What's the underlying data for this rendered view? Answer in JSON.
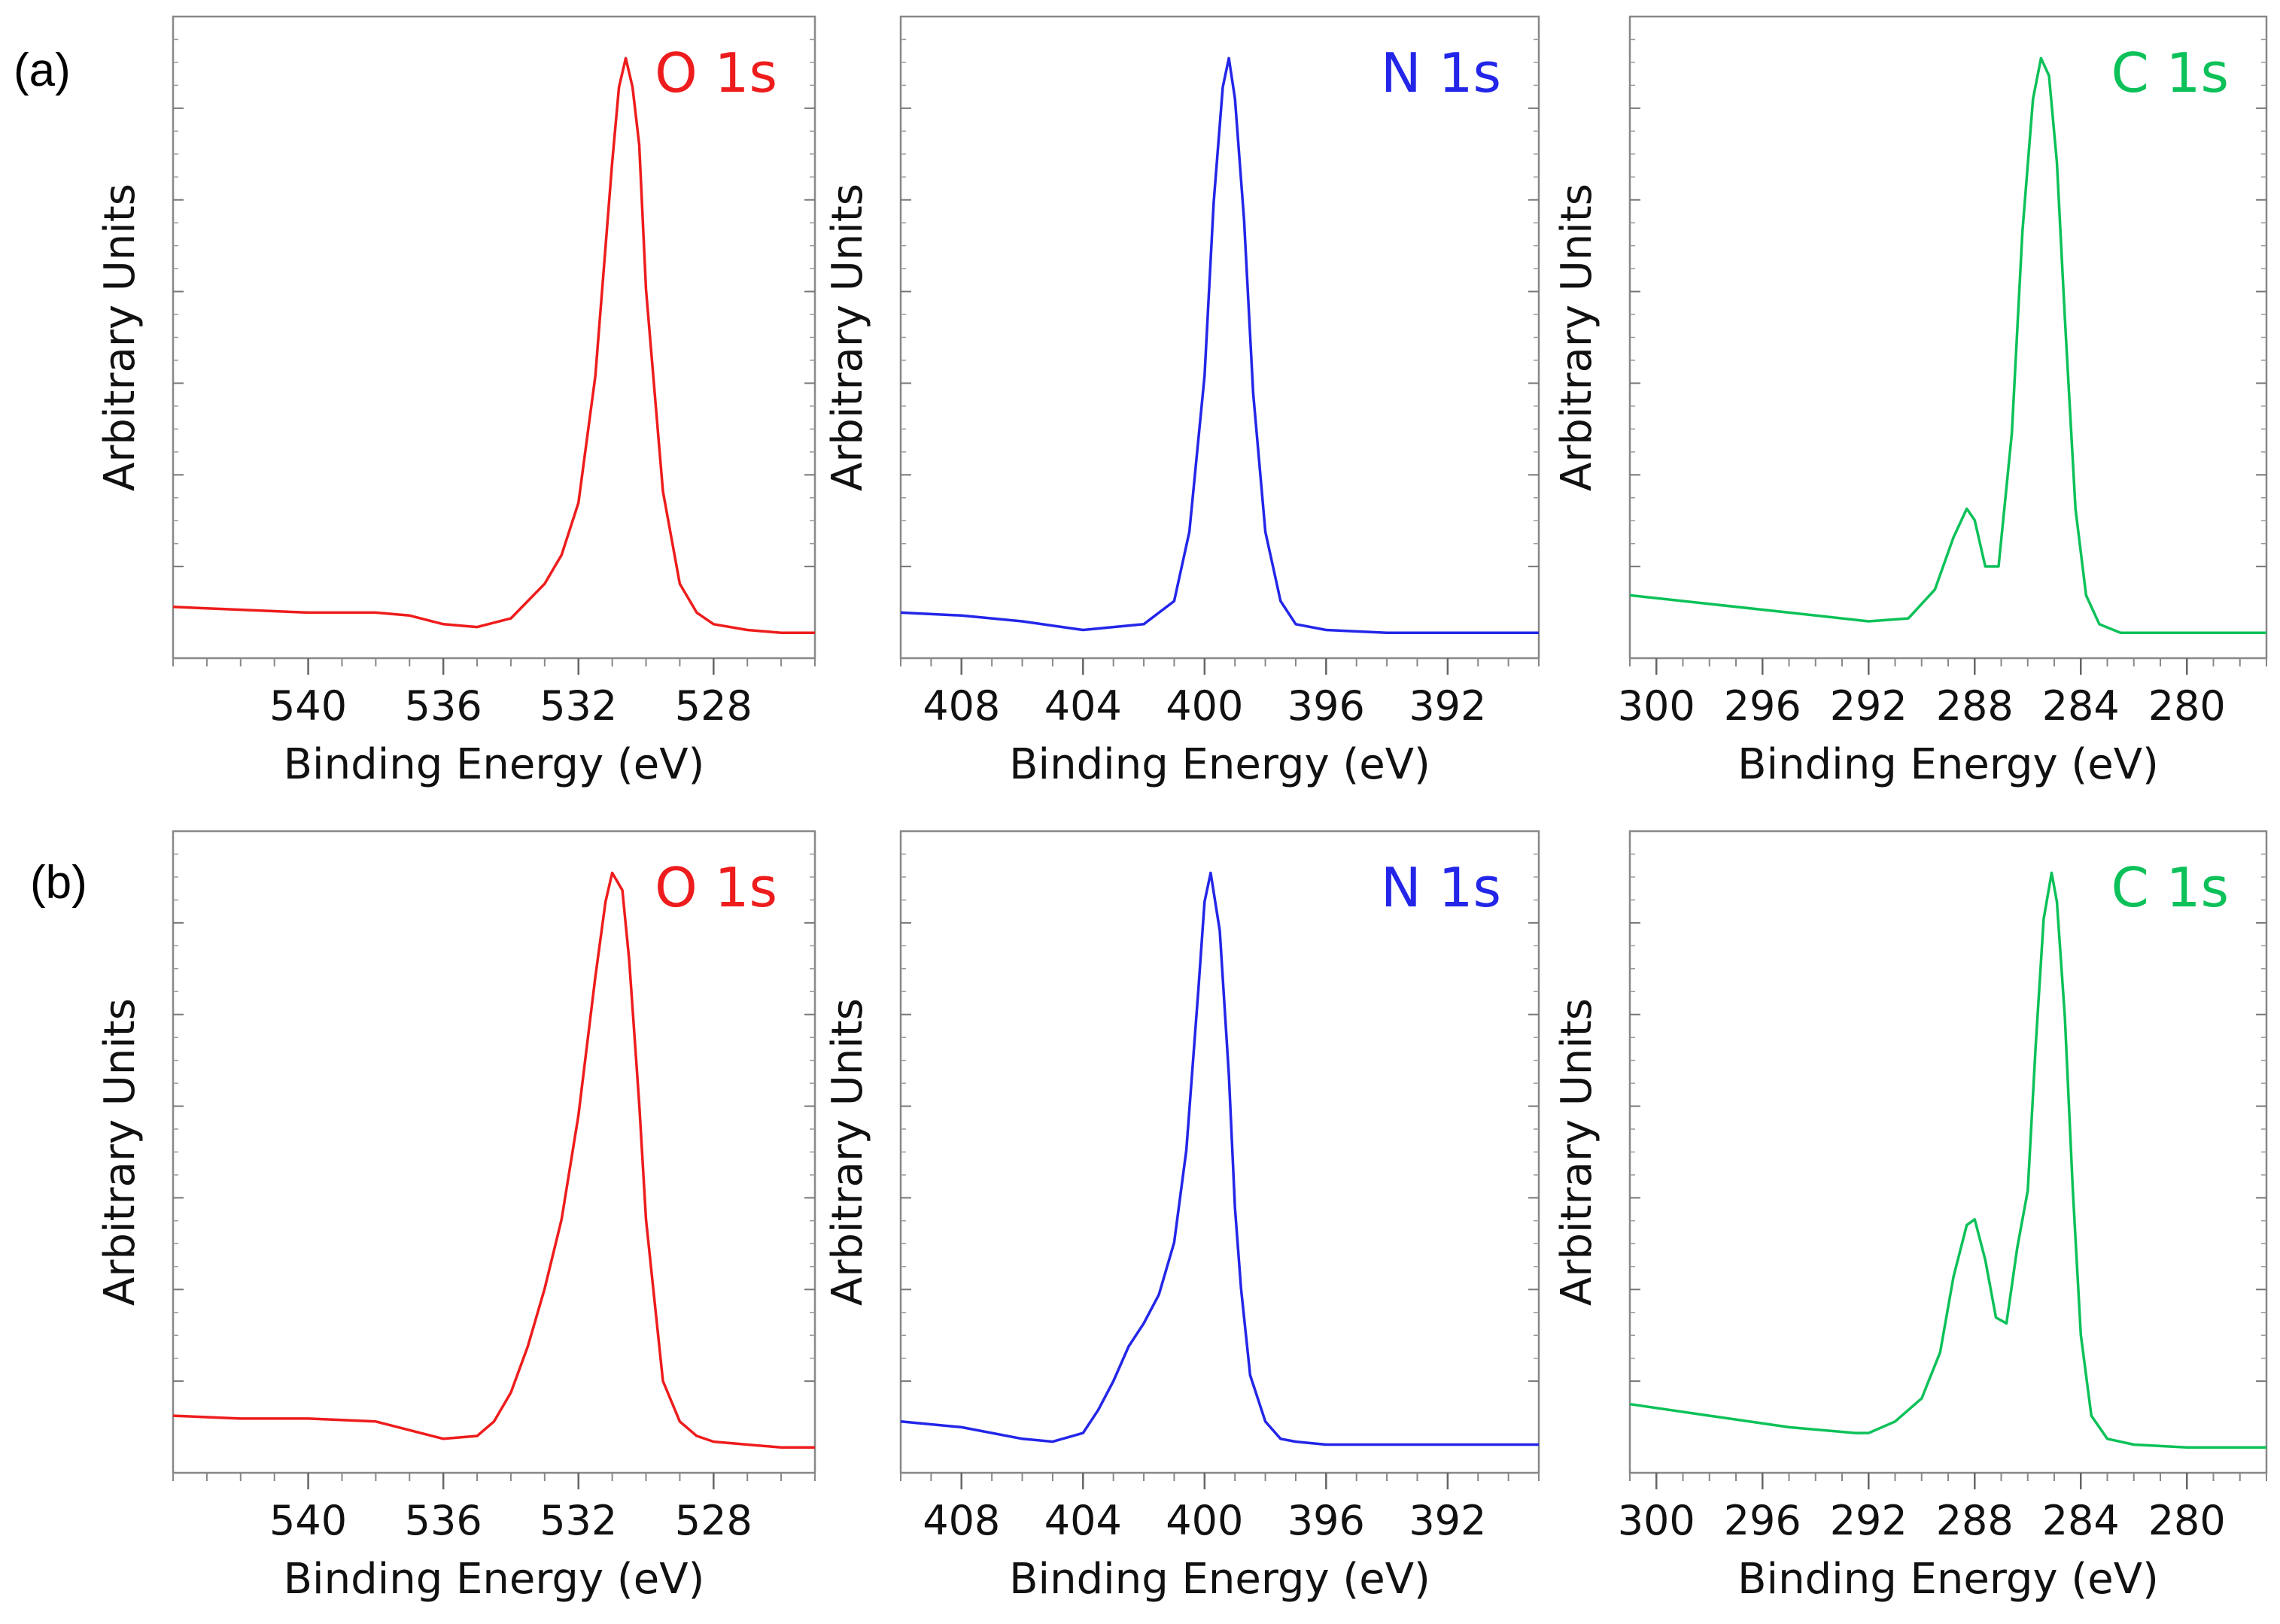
{
  "figure": {
    "panel_labels": [
      "(a)",
      "(b)"
    ],
    "ylabel": "Arbitrary Units",
    "xlabel": "Binding Energy (eV)"
  },
  "chart_data": [
    {
      "type": "line",
      "row": "a",
      "title": "O 1s",
      "color": "#ee1c1c",
      "xlabel": "Binding Energy (eV)",
      "ylabel": "Arbitrary Units",
      "xlim": [
        544,
        525
      ],
      "ylim": [
        0,
        1.05
      ],
      "xticks": [
        540,
        536,
        532,
        528
      ],
      "xtick_labels": [
        "540",
        "536",
        "532",
        "528"
      ],
      "series": [
        {
          "name": "O 1s",
          "x": [
            544,
            542,
            540,
            538,
            537,
            536,
            535,
            534,
            533,
            532.5,
            532,
            531.5,
            531,
            530.8,
            530.6,
            530.4,
            530.2,
            530,
            529.5,
            529,
            528.5,
            528,
            527,
            526,
            525
          ],
          "y": [
            0.05,
            0.045,
            0.04,
            0.04,
            0.035,
            0.02,
            0.015,
            0.03,
            0.09,
            0.14,
            0.23,
            0.45,
            0.82,
            0.95,
            1.0,
            0.95,
            0.85,
            0.6,
            0.25,
            0.09,
            0.04,
            0.02,
            0.01,
            0.005,
            0.005
          ]
        }
      ]
    },
    {
      "type": "line",
      "row": "a",
      "title": "N 1s",
      "color": "#2326e8",
      "xlabel": "Binding Energy (eV)",
      "ylabel": "Arbitrary Units",
      "xlim": [
        410,
        389
      ],
      "ylim": [
        0,
        1.05
      ],
      "xticks": [
        408,
        404,
        400,
        396,
        392
      ],
      "xtick_labels": [
        "408",
        "404",
        "400",
        "396",
        "392"
      ],
      "series": [
        {
          "name": "N 1s",
          "x": [
            410,
            408,
            406,
            404,
            402,
            401,
            400.5,
            400,
            399.7,
            399.4,
            399.2,
            399,
            398.7,
            398.4,
            398,
            397.5,
            397,
            396,
            394,
            392,
            390,
            389
          ],
          "y": [
            0.04,
            0.035,
            0.025,
            0.01,
            0.02,
            0.06,
            0.18,
            0.45,
            0.75,
            0.95,
            1.0,
            0.93,
            0.72,
            0.42,
            0.18,
            0.06,
            0.02,
            0.01,
            0.005,
            0.005,
            0.005,
            0.005
          ]
        }
      ]
    },
    {
      "type": "line",
      "row": "a",
      "title": "C 1s",
      "color": "#0cc159",
      "xlabel": "Binding Energy (eV)",
      "ylabel": "Arbitrary Units",
      "xlim": [
        301,
        277
      ],
      "ylim": [
        0,
        1.05
      ],
      "xticks": [
        300,
        296,
        292,
        288,
        284,
        280
      ],
      "xtick_labels": [
        "300",
        "296",
        "292",
        "288",
        "284",
        "280"
      ],
      "series": [
        {
          "name": "C 1s",
          "x": [
            301,
            298,
            295,
            292,
            290.5,
            289.5,
            288.8,
            288.3,
            288,
            287.6,
            287.1,
            286.6,
            286.2,
            285.8,
            285.5,
            285.2,
            284.9,
            284.6,
            284.2,
            283.8,
            283.3,
            282.5,
            281,
            279,
            277
          ],
          "y": [
            0.07,
            0.055,
            0.04,
            0.025,
            0.03,
            0.08,
            0.17,
            0.22,
            0.2,
            0.12,
            0.12,
            0.35,
            0.7,
            0.93,
            1.0,
            0.97,
            0.82,
            0.55,
            0.22,
            0.07,
            0.02,
            0.005,
            0.005,
            0.005,
            0.005
          ]
        }
      ]
    },
    {
      "type": "line",
      "row": "b",
      "title": "O 1s",
      "color": "#ee1c1c",
      "xlabel": "Binding Energy (eV)",
      "ylabel": "Arbitrary Units",
      "xlim": [
        544,
        525
      ],
      "ylim": [
        0,
        1.05
      ],
      "xticks": [
        540,
        536,
        532,
        528
      ],
      "xtick_labels": [
        "540",
        "536",
        "532",
        "528"
      ],
      "series": [
        {
          "name": "O 1s",
          "x": [
            544,
            542,
            540,
            538,
            537,
            536,
            535,
            534.5,
            534,
            533.5,
            533,
            532.5,
            532,
            531.5,
            531.2,
            531,
            530.7,
            530.5,
            530.2,
            530,
            529.5,
            529,
            528.5,
            528,
            527,
            526,
            525
          ],
          "y": [
            0.06,
            0.055,
            0.055,
            0.05,
            0.035,
            0.02,
            0.025,
            0.05,
            0.1,
            0.18,
            0.28,
            0.4,
            0.58,
            0.82,
            0.95,
            1.0,
            0.97,
            0.85,
            0.6,
            0.4,
            0.12,
            0.05,
            0.025,
            0.015,
            0.01,
            0.005,
            0.005
          ]
        }
      ]
    },
    {
      "type": "line",
      "row": "b",
      "title": "N 1s",
      "color": "#2326e8",
      "xlabel": "Binding Energy (eV)",
      "ylabel": "Arbitrary Units",
      "xlim": [
        410,
        389
      ],
      "ylim": [
        0,
        1.05
      ],
      "xticks": [
        408,
        404,
        400,
        396,
        392
      ],
      "xtick_labels": [
        "408",
        "404",
        "400",
        "396",
        "392"
      ],
      "series": [
        {
          "name": "N 1s",
          "x": [
            410,
            408,
            406,
            405,
            404,
            403.5,
            403,
            402.5,
            402,
            401.5,
            401,
            400.6,
            400.2,
            400,
            399.8,
            399.5,
            399.2,
            399,
            398.8,
            398.5,
            398,
            397.5,
            397,
            396,
            394,
            392,
            390,
            389
          ],
          "y": [
            0.05,
            0.04,
            0.02,
            0.015,
            0.03,
            0.07,
            0.12,
            0.18,
            0.22,
            0.27,
            0.36,
            0.52,
            0.8,
            0.95,
            1.0,
            0.9,
            0.65,
            0.42,
            0.28,
            0.13,
            0.05,
            0.02,
            0.015,
            0.01,
            0.01,
            0.01,
            0.01,
            0.01
          ]
        }
      ]
    },
    {
      "type": "line",
      "row": "b",
      "title": "C 1s",
      "color": "#0cc159",
      "xlabel": "Binding Energy (eV)",
      "ylabel": "Arbitrary Units",
      "xlim": [
        301,
        277
      ],
      "ylim": [
        0,
        1.05
      ],
      "xticks": [
        300,
        296,
        292,
        288,
        284,
        280
      ],
      "xtick_labels": [
        "300",
        "296",
        "292",
        "288",
        "284",
        "280"
      ],
      "series": [
        {
          "name": "C 1s",
          "x": [
            301,
            298,
            295,
            292.5,
            292,
            291,
            290,
            289.3,
            288.8,
            288.3,
            288,
            287.6,
            287.2,
            286.8,
            286.4,
            286,
            285.7,
            285.4,
            285.1,
            284.9,
            284.6,
            284.3,
            284,
            283.6,
            283,
            282,
            280,
            278,
            277
          ],
          "y": [
            0.08,
            0.06,
            0.04,
            0.03,
            0.03,
            0.05,
            0.09,
            0.17,
            0.3,
            0.39,
            0.4,
            0.33,
            0.23,
            0.22,
            0.35,
            0.45,
            0.7,
            0.92,
            1.0,
            0.95,
            0.75,
            0.45,
            0.2,
            0.06,
            0.02,
            0.01,
            0.005,
            0.005,
            0.005
          ]
        }
      ]
    }
  ]
}
